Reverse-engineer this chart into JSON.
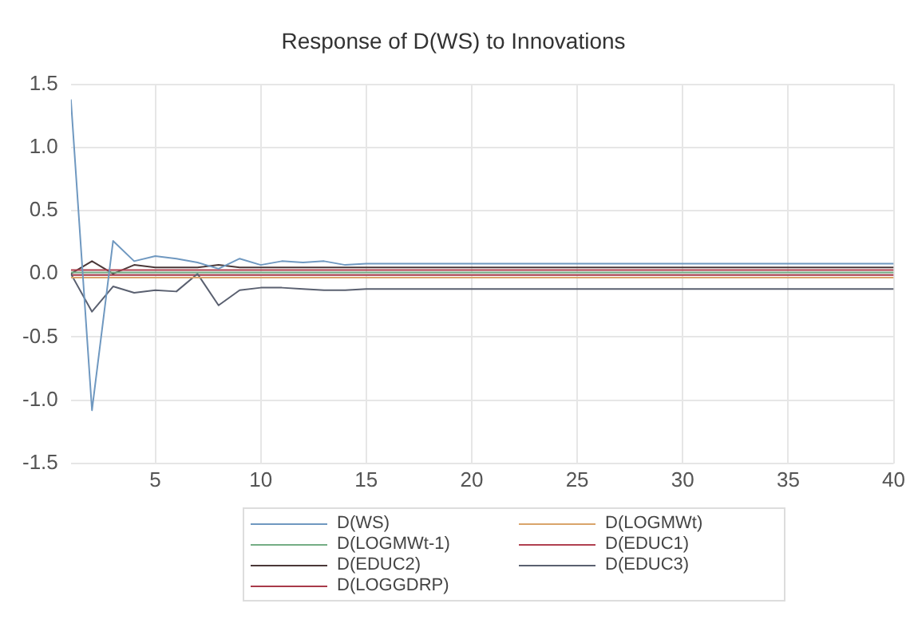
{
  "chart_data": {
    "type": "line",
    "title": "Response of D(WS) to Innovations",
    "x": [
      1,
      2,
      3,
      4,
      5,
      6,
      7,
      8,
      9,
      10,
      11,
      12,
      13,
      14,
      15,
      16,
      17,
      18,
      19,
      20,
      21,
      22,
      23,
      24,
      25,
      26,
      27,
      28,
      29,
      30,
      31,
      32,
      33,
      34,
      35,
      36,
      37,
      38,
      39,
      40
    ],
    "series": [
      {
        "name": "D(WS)",
        "color": "#6f98c0",
        "values": [
          1.38,
          -1.08,
          0.26,
          0.1,
          0.14,
          0.12,
          0.09,
          0.04,
          0.12,
          0.07,
          0.1,
          0.09,
          0.1,
          0.07,
          0.08,
          0.08,
          0.08,
          0.08,
          0.08,
          0.08,
          0.08,
          0.08,
          0.08,
          0.08,
          0.08,
          0.08,
          0.08,
          0.08,
          0.08,
          0.08,
          0.08,
          0.08,
          0.08,
          0.08,
          0.08,
          0.08,
          0.08,
          0.08,
          0.08,
          0.08
        ]
      },
      {
        "name": "D(LOGMWt)",
        "color": "#d9a46a",
        "values": [
          -0.03,
          -0.03,
          -0.03,
          -0.03,
          -0.03,
          -0.03,
          -0.03,
          -0.03,
          -0.03,
          -0.03,
          -0.03,
          -0.03,
          -0.03,
          -0.03,
          -0.03,
          -0.03,
          -0.03,
          -0.03,
          -0.03,
          -0.03,
          -0.03,
          -0.03,
          -0.03,
          -0.03,
          -0.03,
          -0.03,
          -0.03,
          -0.03,
          -0.03,
          -0.03,
          -0.03,
          -0.03,
          -0.03,
          -0.03,
          -0.03,
          -0.03,
          -0.03,
          -0.03,
          -0.03,
          -0.03
        ]
      },
      {
        "name": "D(LOGMWt-1)",
        "color": "#74ad84",
        "values": [
          0.01,
          0.01,
          0.01,
          0.01,
          0.01,
          0.01,
          0.01,
          0.01,
          0.01,
          0.01,
          0.01,
          0.01,
          0.01,
          0.01,
          0.01,
          0.01,
          0.01,
          0.01,
          0.01,
          0.01,
          0.01,
          0.01,
          0.01,
          0.01,
          0.01,
          0.01,
          0.01,
          0.01,
          0.01,
          0.01,
          0.01,
          0.01,
          0.01,
          0.01,
          0.01,
          0.01,
          0.01,
          0.01,
          0.01,
          0.01
        ]
      },
      {
        "name": "D(EDUC1)",
        "color": "#b0404f",
        "values": [
          0.03,
          0.03,
          0.03,
          0.03,
          0.03,
          0.03,
          0.03,
          0.03,
          0.03,
          0.03,
          0.03,
          0.03,
          0.03,
          0.03,
          0.03,
          0.03,
          0.03,
          0.03,
          0.03,
          0.03,
          0.03,
          0.03,
          0.03,
          0.03,
          0.03,
          0.03,
          0.03,
          0.03,
          0.03,
          0.03,
          0.03,
          0.03,
          0.03,
          0.03,
          0.03,
          0.03,
          0.03,
          0.03,
          0.03,
          0.03
        ]
      },
      {
        "name": "D(EDUC2)",
        "color": "#4a3838",
        "values": [
          0,
          0.1,
          0,
          0.07,
          0.05,
          0.05,
          0.05,
          0.07,
          0.05,
          0.05,
          0.05,
          0.05,
          0.05,
          0.05,
          0.05,
          0.05,
          0.05,
          0.05,
          0.05,
          0.05,
          0.05,
          0.05,
          0.05,
          0.05,
          0.05,
          0.05,
          0.05,
          0.05,
          0.05,
          0.05,
          0.05,
          0.05,
          0.05,
          0.05,
          0.05,
          0.05,
          0.05,
          0.05,
          0.05,
          0.05
        ]
      },
      {
        "name": "D(EDUC3)",
        "color": "#5a6070",
        "values": [
          0,
          -0.3,
          -0.1,
          -0.15,
          -0.13,
          -0.14,
          0,
          -0.25,
          -0.13,
          -0.11,
          -0.11,
          -0.12,
          -0.13,
          -0.13,
          -0.12,
          -0.12,
          -0.12,
          -0.12,
          -0.12,
          -0.12,
          -0.12,
          -0.12,
          -0.12,
          -0.12,
          -0.12,
          -0.12,
          -0.12,
          -0.12,
          -0.12,
          -0.12,
          -0.12,
          -0.12,
          -0.12,
          -0.12,
          -0.12,
          -0.12,
          -0.12,
          -0.12,
          -0.12,
          -0.12
        ]
      },
      {
        "name": "D(LOGGDRP)",
        "color": "#a83a4a",
        "values": [
          -0.01,
          -0.01,
          -0.01,
          -0.01,
          -0.01,
          -0.01,
          -0.01,
          -0.01,
          -0.01,
          -0.01,
          -0.01,
          -0.01,
          -0.01,
          -0.01,
          -0.01,
          -0.01,
          -0.01,
          -0.01,
          -0.01,
          -0.01,
          -0.01,
          -0.01,
          -0.01,
          -0.01,
          -0.01,
          -0.01,
          -0.01,
          -0.01,
          -0.01,
          -0.01,
          -0.01,
          -0.01,
          -0.01,
          -0.01,
          -0.01,
          -0.01,
          -0.01,
          -0.01,
          -0.01,
          -0.01
        ]
      }
    ],
    "xlim": [
      1,
      40
    ],
    "xticks": [
      5,
      10,
      15,
      20,
      25,
      30,
      35,
      40
    ],
    "ylim": [
      -1.5,
      1.5
    ],
    "yticks": [
      {
        "value": -1.5,
        "label": "-1.5"
      },
      {
        "value": -1,
        "label": "-1.0"
      },
      {
        "value": -0.5,
        "label": "-0.5"
      },
      {
        "value": 0,
        "label": "0.0"
      },
      {
        "value": 0.5,
        "label": "0.5"
      },
      {
        "value": 1,
        "label": "1.0"
      },
      {
        "value": 1.5,
        "label": "1.5"
      }
    ],
    "grid": true,
    "legend": "bottom",
    "marker": "none",
    "line_style": "solid"
  }
}
